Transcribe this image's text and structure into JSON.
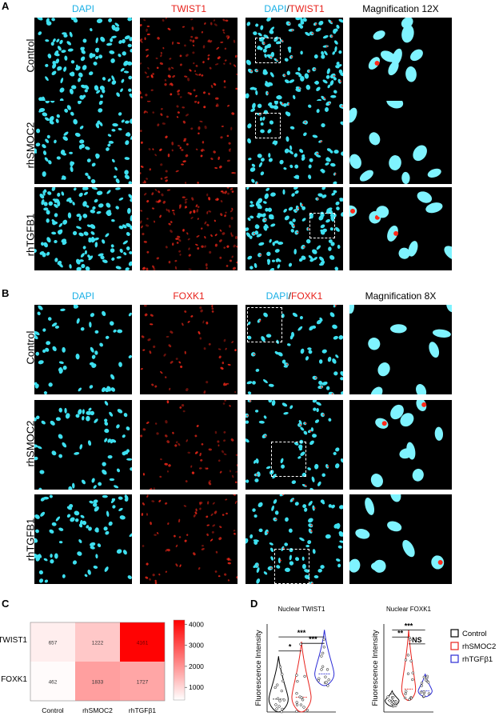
{
  "panelA": {
    "letter": "A",
    "cols": [
      "DAPI",
      "TWIST1",
      "DAPI",
      "TWIST1"
    ],
    "merge_sep": "/",
    "mag": "Magnification 12X",
    "rows": [
      "Control",
      "rhSMOC2",
      "rhTGFB1"
    ]
  },
  "panelB": {
    "letter": "B",
    "cols": [
      "DAPI",
      "FOXK1",
      "DAPI",
      "FOXK1"
    ],
    "merge_sep": "/",
    "mag": "Magnification 8X",
    "rows": [
      "Control",
      "rhSMOC2",
      "rhTGFB1"
    ]
  },
  "panelC": {
    "letter": "C",
    "chart_data": {
      "type": "heatmap",
      "rows": [
        "TWIST1",
        "FOXK1"
      ],
      "cols": [
        "Control",
        "rhSMOC2",
        "rhTGFβ1"
      ],
      "values": [
        [
          657,
          1222,
          4161
        ],
        [
          462,
          1833,
          1727
        ]
      ],
      "colorbar_ticks": [
        "1000",
        "2000",
        "3000",
        "4000"
      ],
      "colorbar_range": [
        400,
        4200
      ],
      "colors": {
        "low": "#ffffff",
        "high": "#ff0000"
      }
    }
  },
  "panelD": {
    "letter": "D",
    "chart_data": [
      {
        "type": "violin",
        "title": "Nuclear TWIST1",
        "ylabel": "Fluorescence Intensity",
        "groups": [
          "Control",
          "rhSMOC2",
          "rhTGFβ1"
        ],
        "approx_median": [
          22,
          25,
          65
        ],
        "approx_range": [
          [
            0,
            95
          ],
          [
            0,
            120
          ],
          [
            45,
            140
          ]
        ],
        "significance": [
          {
            "pair": [
              "Control",
              "rhSMOC2"
            ],
            "label": "*"
          },
          {
            "pair": [
              "Control",
              "rhTGFβ1"
            ],
            "label": "***"
          },
          {
            "pair": [
              "rhSMOC2",
              "rhTGFβ1"
            ],
            "label": "***"
          }
        ]
      },
      {
        "type": "violin",
        "title": "Nuclear FOXK1",
        "ylabel": "Fluorescence Intensity",
        "groups": [
          "Control",
          "rhSMOC2",
          "rhTGFβ1"
        ],
        "approx_median": [
          30,
          60,
          55
        ],
        "approx_range": [
          [
            15,
            55
          ],
          [
            30,
            215
          ],
          [
            40,
            100
          ]
        ],
        "significance": [
          {
            "pair": [
              "Control",
              "rhSMOC2"
            ],
            "label": "**"
          },
          {
            "pair": [
              "Control",
              "rhTGFβ1"
            ],
            "label": "***"
          },
          {
            "pair": [
              "rhSMOC2",
              "rhTGFβ1"
            ],
            "label": "NS"
          }
        ]
      }
    ],
    "legend": [
      {
        "label": "Control",
        "color": "#000000"
      },
      {
        "label": "rhSMOC2",
        "color": "#e8211b"
      },
      {
        "label": "rhTGFβ1",
        "color": "#2b2bd6"
      }
    ]
  },
  "colors": {
    "dapi": "#1ab0e6",
    "red": "#e8211b",
    "nucleus": "#3ee0f0",
    "signal": "#ff2a1a"
  }
}
